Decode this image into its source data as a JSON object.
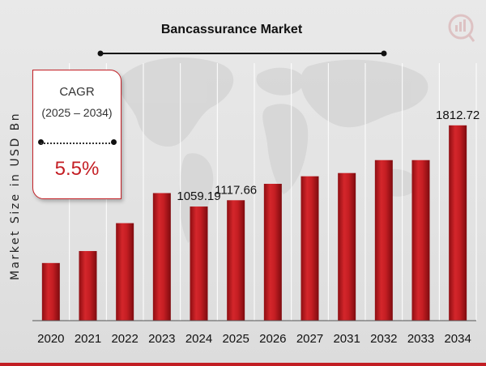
{
  "chart_data": {
    "type": "bar",
    "title": "Bancassurance Market",
    "ylabel": "Market Size in USD Bn",
    "xlabel": "",
    "categories": [
      "2020",
      "2021",
      "2022",
      "2023",
      "2024",
      "2025",
      "2026",
      "2027",
      "2031",
      "2032",
      "2033",
      "2034"
    ],
    "values": [
      535,
      646,
      905,
      1184,
      1059.19,
      1117.66,
      1270,
      1340,
      1370,
      1490,
      1490,
      1812.72
    ],
    "data_labels": [
      "",
      "",
      "",
      "",
      "1059.19",
      "1117.66",
      "",
      "",
      "",
      "",
      "",
      "1812.72"
    ],
    "ylim": [
      0,
      2450
    ],
    "grid": true,
    "bar_color": "#c21d22"
  },
  "cagr": {
    "label": "CAGR",
    "range": "(2025 – 2034)",
    "value": "5.5%"
  },
  "colors": {
    "accent": "#c21d22",
    "background": "#e6e6e6"
  },
  "logo_icon": "mrfr-logo-icon"
}
